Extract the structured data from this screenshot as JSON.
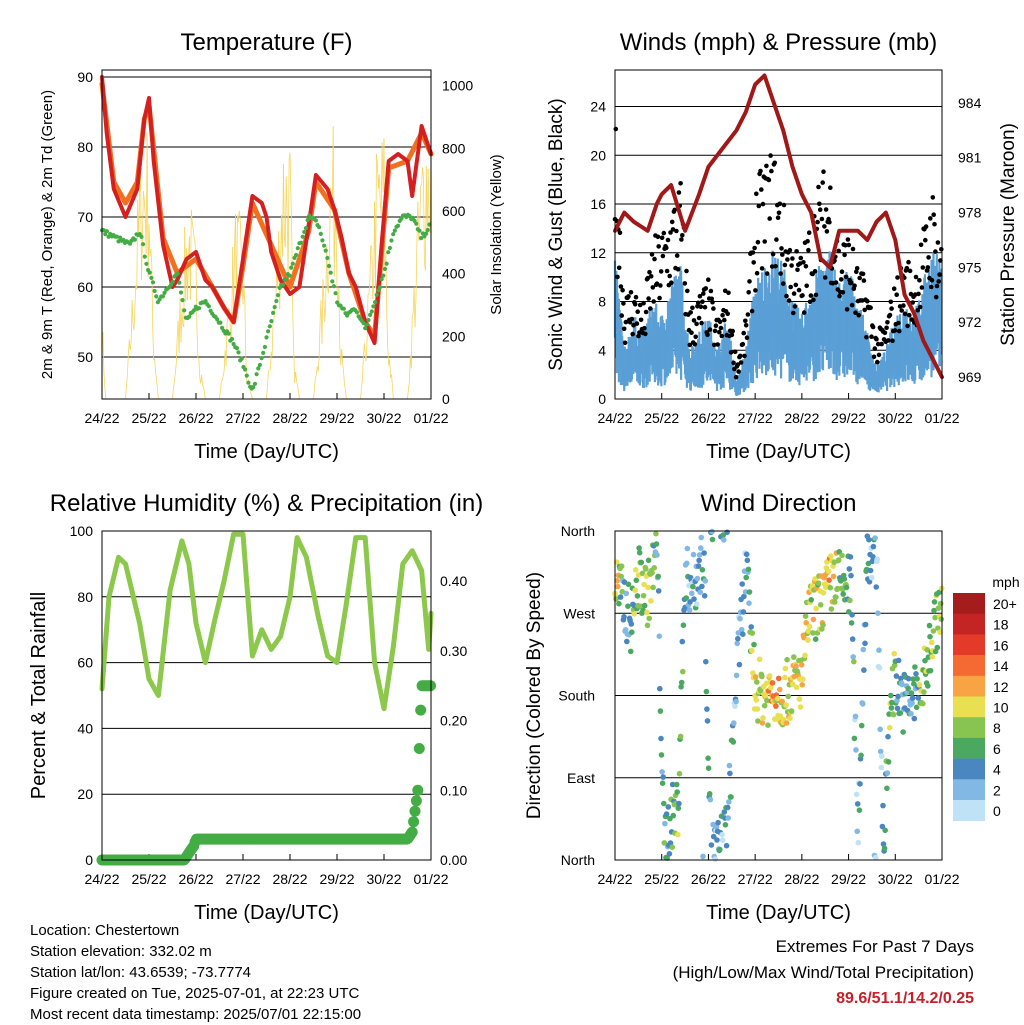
{
  "chart_data": [
    {
      "type": "line",
      "title": "Temperature (F)",
      "xlabel": "Time (Day/UTC)",
      "ylabel": "2m & 9m T (Red, Orange) & 2m Td (Green)",
      "ylabel_right": "Solar Insolation (Yellow)",
      "x_ticks": [
        "24/22",
        "25/22",
        "26/22",
        "27/22",
        "28/22",
        "29/22",
        "30/22",
        "01/22"
      ],
      "ylim": [
        44,
        91
      ],
      "y_ticks": [
        50,
        60,
        70,
        80,
        90
      ],
      "ylim_right": [
        0,
        1050
      ],
      "y_ticks_right": [
        0,
        200,
        400,
        600,
        800,
        1000
      ],
      "grid": "horizontal",
      "colors": {
        "temp_2m": "#d42020",
        "temp_9m": "#f07020",
        "dewpoint": "#44ac44",
        "solar": "#f6d55c"
      },
      "series": [
        {
          "name": "2m T",
          "x": [
            0,
            0.1,
            0.25,
            0.5,
            0.75,
            0.9,
            1.0,
            1.1,
            1.3,
            1.5,
            1.6,
            1.8,
            2.0,
            2.2,
            2.35,
            2.6,
            2.8,
            3.0,
            3.2,
            3.4,
            3.5,
            3.6,
            3.8,
            4.0,
            4.2,
            4.4,
            4.55,
            4.8,
            4.95,
            5.1,
            5.25,
            5.4,
            5.6,
            5.8,
            5.95,
            6.1,
            6.3,
            6.5,
            6.6,
            6.8,
            7.0
          ],
          "values": [
            90,
            82,
            74,
            70,
            74,
            84,
            87,
            78,
            66,
            60,
            61,
            64,
            65,
            61,
            60,
            57,
            55,
            64,
            73,
            72,
            70,
            65,
            61,
            59,
            60,
            69,
            76,
            74,
            71,
            67,
            62,
            60,
            55,
            52,
            66,
            78,
            79,
            78,
            73,
            83,
            79
          ]
        },
        {
          "name": "9m T",
          "x": [
            0,
            0.25,
            0.5,
            0.75,
            0.9,
            1.0,
            1.3,
            1.6,
            2.0,
            2.35,
            2.6,
            2.8,
            3.0,
            3.2,
            3.6,
            4.0,
            4.4,
            4.55,
            4.95,
            5.25,
            5.6,
            5.8,
            6.1,
            6.5,
            6.8,
            7.0
          ],
          "values": [
            89,
            75,
            72,
            75,
            84,
            86,
            67,
            62,
            64,
            60,
            57,
            55,
            63,
            72,
            66,
            60,
            68,
            75,
            71,
            62,
            55,
            53,
            77,
            78,
            82,
            79
          ]
        },
        {
          "name": "2m Td",
          "x": [
            0,
            0.3,
            0.6,
            0.8,
            1.0,
            1.2,
            1.4,
            1.6,
            1.8,
            2.0,
            2.2,
            2.4,
            2.6,
            2.8,
            3.0,
            3.2,
            3.4,
            3.6,
            3.8,
            4.0,
            4.2,
            4.4,
            4.6,
            4.8,
            5.0,
            5.2,
            5.4,
            5.6,
            5.8,
            6.0,
            6.2,
            6.4,
            6.6,
            6.8,
            7.0
          ],
          "values": [
            68,
            67,
            66,
            68,
            62,
            58,
            60,
            62,
            55,
            57,
            58,
            56,
            54,
            52,
            49,
            45,
            50,
            55,
            60,
            62,
            66,
            70,
            69,
            64,
            58,
            56,
            57,
            54,
            58,
            62,
            68,
            70,
            70,
            67,
            69
          ]
        },
        {
          "name": "Solar Insolation",
          "x": [
            0,
            0.08,
            0.2,
            0.3,
            0.5,
            0.7,
            0.85,
            1.0,
            1.08,
            1.2,
            1.3,
            1.5,
            1.7,
            1.85,
            2.0,
            2.08,
            2.2,
            2.3,
            2.5,
            2.7,
            2.85,
            3.0,
            3.08,
            3.2,
            3.3,
            3.5,
            3.7,
            3.85,
            4.0,
            4.08,
            4.2,
            4.3,
            4.5,
            4.7,
            4.85,
            5.0,
            5.08,
            5.2,
            5.3,
            5.5,
            5.7,
            5.85,
            6.0,
            6.08,
            6.2,
            6.3,
            6.5,
            6.7,
            6.85,
            7.0
          ],
          "values": [
            300,
            0,
            0,
            0,
            0,
            500,
            900,
            900,
            300,
            0,
            0,
            0,
            450,
            700,
            500,
            150,
            0,
            0,
            0,
            350,
            650,
            550,
            100,
            0,
            0,
            0,
            450,
            900,
            880,
            150,
            0,
            0,
            0,
            400,
            850,
            900,
            200,
            0,
            0,
            0,
            450,
            850,
            900,
            250,
            0,
            0,
            0,
            600,
            950,
            1000
          ]
        }
      ]
    },
    {
      "type": "scatter",
      "title": "Winds (mph) & Pressure (mb)",
      "xlabel": "Time (Day/UTC)",
      "ylabel": "Sonic Wind & Gust (Blue, Black)",
      "ylabel_right": "Station Pressure (Maroon)",
      "x_ticks": [
        "24/22",
        "25/22",
        "26/22",
        "27/22",
        "28/22",
        "29/22",
        "30/22",
        "01/22"
      ],
      "ylim": [
        0,
        27
      ],
      "y_ticks": [
        0,
        4,
        8,
        12,
        16,
        20,
        24
      ],
      "ylim_right": [
        967.8,
        985.8
      ],
      "y_ticks_right": [
        969,
        972,
        975,
        978,
        981,
        984
      ],
      "grid": "horizontal",
      "colors": {
        "wind": "#5a9fd6",
        "gust": "#000000",
        "pressure": "#a01818"
      },
      "series": [
        {
          "name": "Wind",
          "x": [
            0,
            0.2,
            0.4,
            0.6,
            0.8,
            1.0,
            1.2,
            1.4,
            1.6,
            1.8,
            2.0,
            2.2,
            2.4,
            2.6,
            2.8,
            3.0,
            3.2,
            3.4,
            3.6,
            3.8,
            4.0,
            4.2,
            4.4,
            4.6,
            4.8,
            5.0,
            5.2,
            5.4,
            5.6,
            5.8,
            6.0,
            6.2,
            6.4,
            6.6,
            6.8,
            7.0
          ],
          "values": [
            9,
            3,
            5,
            4,
            6,
            5,
            7,
            8,
            3,
            4,
            5,
            3,
            5,
            1,
            3,
            7,
            8,
            9,
            8,
            6,
            5,
            7,
            8,
            9,
            7,
            8,
            6,
            4,
            2,
            3,
            5,
            6,
            5,
            7,
            9,
            8
          ]
        },
        {
          "name": "Gust",
          "x": [
            0,
            0.2,
            0.4,
            0.6,
            0.8,
            1.0,
            1.2,
            1.4,
            1.6,
            1.8,
            2.0,
            2.2,
            2.4,
            2.6,
            2.8,
            3.0,
            3.2,
            3.4,
            3.6,
            3.8,
            4.0,
            4.2,
            4.4,
            4.6,
            4.8,
            5.0,
            5.2,
            5.4,
            5.6,
            5.8,
            6.0,
            6.2,
            6.4,
            6.6,
            6.8,
            7.0
          ],
          "values": [
            22,
            8,
            9,
            7,
            12,
            13,
            15,
            17,
            7,
            8,
            9,
            6,
            9,
            3,
            6,
            16,
            18,
            19,
            15,
            12,
            11,
            14,
            17,
            18,
            12,
            13,
            10,
            9,
            5,
            6,
            9,
            11,
            10,
            13,
            16,
            12
          ]
        },
        {
          "name": "Station Pressure",
          "x": [
            0,
            0.2,
            0.4,
            0.7,
            0.9,
            1.0,
            1.2,
            1.5,
            1.8,
            2.0,
            2.3,
            2.6,
            2.8,
            3.0,
            3.2,
            3.4,
            3.6,
            3.8,
            4.0,
            4.2,
            4.4,
            4.6,
            4.8,
            5.0,
            5.2,
            5.4,
            5.6,
            5.8,
            6.0,
            6.2,
            6.4,
            6.6,
            6.8,
            7.0
          ],
          "values": [
            977,
            978,
            977.5,
            977,
            978.5,
            979,
            979.5,
            977,
            979,
            980.5,
            981.5,
            982.5,
            983.5,
            985,
            985.5,
            984,
            982.5,
            980.5,
            979,
            978,
            975.5,
            975,
            977,
            977,
            977,
            976.5,
            977.5,
            978,
            976.5,
            973.5,
            972.5,
            971,
            970,
            969
          ]
        }
      ]
    },
    {
      "type": "line",
      "title": "Relative Humidity (%) & Precipitation (in)",
      "xlabel": "Time (Day/UTC)",
      "ylabel": "Percent & Total Rainfall",
      "x_ticks": [
        "24/22",
        "25/22",
        "26/22",
        "27/22",
        "28/22",
        "29/22",
        "30/22",
        "01/22"
      ],
      "ylim": [
        0,
        100
      ],
      "y_ticks": [
        0,
        20,
        40,
        60,
        80,
        100
      ],
      "ylim_right": [
        0,
        0.472
      ],
      "y_ticks_right": [
        "0.00",
        "0.10",
        "0.20",
        "0.30",
        "0.40"
      ],
      "grid": "horizontal",
      "colors": {
        "rh": "#8cc84c",
        "precip": "#44ac44"
      },
      "series": [
        {
          "name": "Relative Humidity",
          "x": [
            0,
            0.15,
            0.35,
            0.5,
            0.8,
            1.0,
            1.2,
            1.45,
            1.7,
            1.85,
            2.0,
            2.2,
            2.4,
            2.6,
            2.8,
            3.0,
            3.2,
            3.4,
            3.6,
            3.8,
            4.0,
            4.15,
            4.35,
            4.6,
            4.8,
            5.0,
            5.2,
            5.4,
            5.6,
            5.8,
            6.0,
            6.2,
            6.4,
            6.6,
            6.8,
            6.95,
            7.0
          ],
          "values": [
            52,
            80,
            92,
            90,
            72,
            55,
            50,
            82,
            97,
            90,
            72,
            60,
            73,
            85,
            99,
            99,
            62,
            70,
            64,
            68,
            80,
            98,
            92,
            74,
            62,
            60,
            78,
            98,
            98,
            60,
            46,
            65,
            90,
            94,
            88,
            64,
            75
          ]
        },
        {
          "name": "Total Rainfall",
          "x": [
            0,
            1.0,
            1.75,
            1.85,
            1.95,
            2.0,
            3.0,
            4.0,
            5.0,
            6.0,
            6.5,
            6.6,
            6.68,
            6.72,
            6.76,
            6.8,
            7.0
          ],
          "values": [
            0,
            0,
            0,
            0.01,
            0.02,
            0.03,
            0.03,
            0.03,
            0.03,
            0.03,
            0.03,
            0.04,
            0.08,
            0.1,
            0.18,
            0.25,
            0.25
          ]
        }
      ]
    },
    {
      "type": "scatter",
      "title": "Wind Direction",
      "xlabel": "Time (Day/UTC)",
      "ylabel": "Direction (Colored By Speed)",
      "x_ticks": [
        "24/22",
        "25/22",
        "26/22",
        "27/22",
        "28/22",
        "29/22",
        "30/22",
        "01/22"
      ],
      "y_ticks": [
        "North",
        "East",
        "South",
        "West",
        "North"
      ],
      "ylim": [
        0,
        360
      ],
      "grid": "horizontal",
      "legend": {
        "title": "mph",
        "labels": [
          "20+",
          "18",
          "16",
          "14",
          "12",
          "10",
          "8",
          "6",
          "4",
          "2",
          "0"
        ],
        "colors": [
          "#a51c1c",
          "#c42424",
          "#e33a2a",
          "#f46a32",
          "#f8a444",
          "#e8e050",
          "#88c450",
          "#4aa860",
          "#4a86c0",
          "#82b8e4",
          "#bfe2f6"
        ],
        "placement": "right"
      },
      "series": [
        {
          "name": "Direction",
          "x": [
            0.05,
            0.2,
            0.35,
            0.5,
            0.7,
            0.9,
            1.05,
            1.2,
            1.35,
            1.5,
            1.7,
            1.9,
            2.05,
            2.2,
            2.4,
            2.6,
            2.8,
            3.0,
            3.2,
            3.4,
            3.6,
            3.8,
            4.0,
            4.15,
            4.3,
            4.5,
            4.7,
            4.9,
            5.05,
            5.2,
            5.4,
            5.6,
            5.75,
            5.9,
            6.0,
            6.2,
            6.4,
            6.6,
            6.8,
            6.95
          ],
          "values": [
            300,
            280,
            260,
            310,
            290,
            340,
            20,
            45,
            60,
            310,
            300,
            340,
            15,
            10,
            30,
            200,
            320,
            190,
            180,
            185,
            180,
            190,
            200,
            270,
            275,
            290,
            310,
            300,
            300,
            30,
            340,
            330,
            10,
            180,
            200,
            170,
            180,
            190,
            250,
            270
          ],
          "speeds": [
            10,
            4,
            6,
            8,
            9,
            4,
            4,
            6,
            8,
            4,
            2,
            4,
            4,
            2,
            4,
            2,
            2,
            10,
            10,
            12,
            10,
            10,
            10,
            10,
            8,
            12,
            10,
            6,
            6,
            2,
            4,
            2,
            2,
            8,
            6,
            4,
            4,
            8,
            8,
            8
          ]
        }
      ]
    }
  ],
  "footer": {
    "location": "Location: Chestertown",
    "elevation": "Station elevation: 332.02 m",
    "latlon": "Station lat/lon: 43.6539; -73.7774",
    "created": "Figure created on Tue, 2025-07-01, at 22:23 UTC",
    "timestamp": "Most recent data timestamp: 2025/07/01 22:15:00"
  },
  "extremes": {
    "title": "Extremes For Past 7 Days",
    "subtitle": "(High/Low/Max Wind/Total Precipitation)",
    "values": "89.6/51.1/14.2/0.25"
  }
}
